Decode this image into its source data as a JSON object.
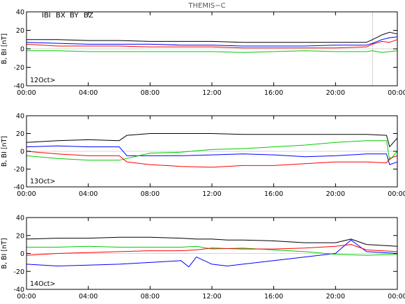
{
  "figure": {
    "title": "THEMIS−C",
    "legend": [
      {
        "label": "IBI",
        "color": "#000000"
      },
      {
        "label": "BX",
        "color": "#0000ff"
      },
      {
        "label": "BY",
        "color": "#00cc00"
      },
      {
        "label": "BZ",
        "color": "#ff0000"
      }
    ]
  },
  "chart_data": [
    {
      "type": "line",
      "date_label": "12Oct>",
      "ylabel": "B, BI [nT]",
      "xlim": [
        0,
        24
      ],
      "ylim": [
        -40,
        40
      ],
      "yticks": [
        -40,
        -20,
        0,
        20,
        40
      ],
      "xtick_labels": [
        "00:00",
        "04:00",
        "08:00",
        "12:00",
        "16:00",
        "20:00",
        "00:00"
      ],
      "marker_hour": 22.4,
      "series": [
        {
          "name": "IBI",
          "color": "#000000",
          "points": [
            [
              0,
              10
            ],
            [
              2,
              10
            ],
            [
              4,
              9
            ],
            [
              6,
              9
            ],
            [
              8,
              8
            ],
            [
              10,
              8
            ],
            [
              12,
              8
            ],
            [
              14,
              7
            ],
            [
              16,
              7
            ],
            [
              18,
              7
            ],
            [
              20,
              7
            ],
            [
              22,
              7
            ],
            [
              22.4,
              10
            ],
            [
              23,
              15
            ],
            [
              23.5,
              18
            ],
            [
              24,
              16
            ]
          ]
        },
        {
          "name": "BX",
          "color": "#0000ff",
          "points": [
            [
              0,
              7
            ],
            [
              2,
              6
            ],
            [
              4,
              5
            ],
            [
              6,
              5
            ],
            [
              8,
              5
            ],
            [
              10,
              4
            ],
            [
              12,
              4
            ],
            [
              14,
              3
            ],
            [
              16,
              3
            ],
            [
              18,
              3
            ],
            [
              20,
              4
            ],
            [
              22,
              4
            ],
            [
              22.4,
              6
            ],
            [
              23,
              10
            ],
            [
              23.5,
              12
            ],
            [
              24,
              13
            ]
          ]
        },
        {
          "name": "BY",
          "color": "#00cc00",
          "points": [
            [
              0,
              -2
            ],
            [
              2,
              -2
            ],
            [
              4,
              -3
            ],
            [
              6,
              -3
            ],
            [
              8,
              -3
            ],
            [
              10,
              -3
            ],
            [
              12,
              -3
            ],
            [
              14,
              -4
            ],
            [
              16,
              -3
            ],
            [
              18,
              -2
            ],
            [
              20,
              -3
            ],
            [
              22,
              -3
            ],
            [
              22.4,
              -2
            ],
            [
              23,
              -4
            ],
            [
              23.5,
              -3
            ],
            [
              24,
              -2
            ]
          ]
        },
        {
          "name": "BZ",
          "color": "#ff0000",
          "points": [
            [
              0,
              5
            ],
            [
              2,
              3
            ],
            [
              4,
              3
            ],
            [
              6,
              3
            ],
            [
              8,
              2
            ],
            [
              10,
              2
            ],
            [
              12,
              2
            ],
            [
              14,
              1
            ],
            [
              16,
              1
            ],
            [
              18,
              1
            ],
            [
              20,
              1
            ],
            [
              22,
              2
            ],
            [
              22.4,
              5
            ],
            [
              23,
              8
            ],
            [
              23.5,
              7
            ],
            [
              24,
              10
            ]
          ]
        }
      ]
    },
    {
      "type": "line",
      "date_label": "13Oct>",
      "ylabel": "B, BI [nT]",
      "xlim": [
        0,
        24
      ],
      "ylim": [
        -40,
        40
      ],
      "yticks": [
        -40,
        -20,
        0,
        20,
        40
      ],
      "xtick_labels": [
        "00:00",
        "04:00",
        "08:00",
        "12:00",
        "16:00",
        "20:00",
        "00:00"
      ],
      "series": [
        {
          "name": "IBI",
          "color": "#000000",
          "points": [
            [
              0,
              10
            ],
            [
              2,
              12
            ],
            [
              4,
              13
            ],
            [
              6,
              12
            ],
            [
              6.5,
              18
            ],
            [
              8,
              20
            ],
            [
              10,
              20
            ],
            [
              12,
              20
            ],
            [
              14,
              19
            ],
            [
              16,
              19
            ],
            [
              18,
              19
            ],
            [
              20,
              19
            ],
            [
              22,
              19
            ],
            [
              23.3,
              18
            ],
            [
              23.5,
              5
            ],
            [
              24,
              15
            ]
          ]
        },
        {
          "name": "BX",
          "color": "#0000ff",
          "points": [
            [
              0,
              5
            ],
            [
              2,
              6
            ],
            [
              4,
              5
            ],
            [
              6,
              5
            ],
            [
              6.5,
              -5
            ],
            [
              8,
              -5
            ],
            [
              10,
              -5
            ],
            [
              12,
              -4
            ],
            [
              14,
              -3
            ],
            [
              16,
              -4
            ],
            [
              18,
              -6
            ],
            [
              20,
              -5
            ],
            [
              22,
              -3
            ],
            [
              23.3,
              -3
            ],
            [
              23.5,
              -15
            ],
            [
              24,
              -12
            ]
          ]
        },
        {
          "name": "BY",
          "color": "#00cc00",
          "points": [
            [
              0,
              -5
            ],
            [
              2,
              -8
            ],
            [
              4,
              -10
            ],
            [
              6,
              -10
            ],
            [
              6.5,
              -8
            ],
            [
              8,
              -2
            ],
            [
              10,
              -1
            ],
            [
              12,
              2
            ],
            [
              14,
              3
            ],
            [
              16,
              5
            ],
            [
              18,
              7
            ],
            [
              20,
              10
            ],
            [
              22,
              12
            ],
            [
              23.3,
              12
            ],
            [
              23.5,
              -10
            ],
            [
              24,
              0
            ]
          ]
        },
        {
          "name": "BZ",
          "color": "#ff0000",
          "points": [
            [
              0,
              0
            ],
            [
              2,
              -3
            ],
            [
              4,
              -5
            ],
            [
              6,
              -5
            ],
            [
              6.5,
              -12
            ],
            [
              8,
              -15
            ],
            [
              10,
              -17
            ],
            [
              12,
              -18
            ],
            [
              14,
              -16
            ],
            [
              16,
              -16
            ],
            [
              18,
              -14
            ],
            [
              20,
              -12
            ],
            [
              22,
              -12
            ],
            [
              23.3,
              -13
            ],
            [
              23.5,
              -8
            ],
            [
              24,
              -5
            ]
          ]
        }
      ]
    },
    {
      "type": "line",
      "date_label": "14Oct>",
      "ylabel": "B, BI [nT]",
      "xlim": [
        0,
        24
      ],
      "ylim": [
        -40,
        40
      ],
      "yticks": [
        -40,
        -20,
        0,
        20,
        40
      ],
      "xtick_labels": [
        "00:00",
        "04:00",
        "08:00",
        "12:00",
        "16:00",
        "20:00",
        "00:00"
      ],
      "series": [
        {
          "name": "IBI",
          "color": "#000000",
          "points": [
            [
              0,
              16
            ],
            [
              2,
              17
            ],
            [
              4,
              17
            ],
            [
              6,
              18
            ],
            [
              8,
              18
            ],
            [
              10,
              17
            ],
            [
              11,
              16
            ],
            [
              12,
              16
            ],
            [
              13,
              15
            ],
            [
              14,
              15
            ],
            [
              16,
              14
            ],
            [
              18,
              12
            ],
            [
              20,
              12
            ],
            [
              21,
              16
            ],
            [
              22,
              10
            ],
            [
              24,
              8
            ]
          ]
        },
        {
          "name": "BX",
          "color": "#0000ff",
          "points": [
            [
              0,
              -12
            ],
            [
              2,
              -14
            ],
            [
              4,
              -13
            ],
            [
              6,
              -12
            ],
            [
              8,
              -10
            ],
            [
              10,
              -8
            ],
            [
              10.5,
              -15
            ],
            [
              11,
              -4
            ],
            [
              12,
              -12
            ],
            [
              13,
              -14
            ],
            [
              14,
              -12
            ],
            [
              16,
              -8
            ],
            [
              18,
              -4
            ],
            [
              20,
              0
            ],
            [
              21,
              15
            ],
            [
              22,
              2
            ],
            [
              24,
              0
            ]
          ]
        },
        {
          "name": "BY",
          "color": "#00cc00",
          "points": [
            [
              0,
              7
            ],
            [
              2,
              7
            ],
            [
              4,
              8
            ],
            [
              6,
              7
            ],
            [
              8,
              7
            ],
            [
              10,
              7
            ],
            [
              11,
              8
            ],
            [
              12,
              5
            ],
            [
              14,
              6
            ],
            [
              16,
              4
            ],
            [
              18,
              2
            ],
            [
              20,
              -1
            ],
            [
              22,
              -2
            ],
            [
              24,
              -1
            ]
          ]
        },
        {
          "name": "BZ",
          "color": "#ff0000",
          "points": [
            [
              0,
              -2
            ],
            [
              2,
              0
            ],
            [
              4,
              1
            ],
            [
              6,
              2
            ],
            [
              8,
              3
            ],
            [
              10,
              3
            ],
            [
              11,
              4
            ],
            [
              12,
              6
            ],
            [
              14,
              5
            ],
            [
              16,
              5
            ],
            [
              18,
              6
            ],
            [
              20,
              8
            ],
            [
              21,
              10
            ],
            [
              22,
              4
            ],
            [
              24,
              2
            ]
          ]
        }
      ]
    }
  ]
}
